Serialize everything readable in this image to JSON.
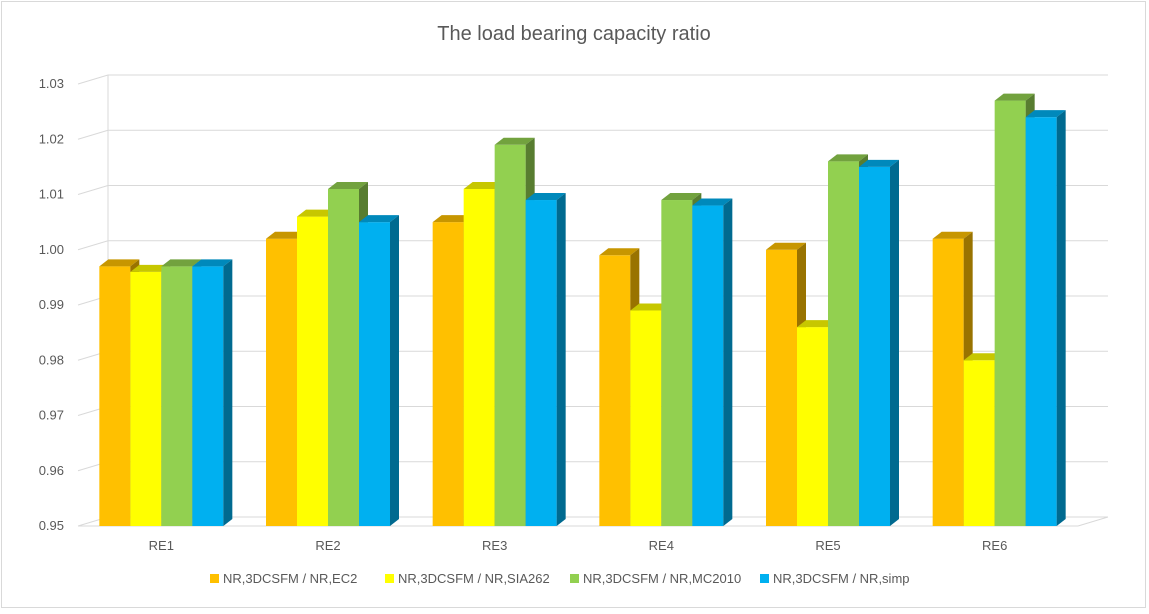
{
  "chart_data": {
    "type": "bar",
    "title": "The load bearing capacity ratio",
    "categories": [
      "RE1",
      "RE2",
      "RE3",
      "RE4",
      "RE5",
      "RE6"
    ],
    "series": [
      {
        "name": "NR,3DCSFM / NR,EC2",
        "color": "#FFC000",
        "values": [
          0.997,
          1.002,
          1.005,
          0.999,
          1.0,
          1.002
        ]
      },
      {
        "name": "NR,3DCSFM / NR,SIA262",
        "color": "#FFFF00",
        "values": [
          0.996,
          1.006,
          1.011,
          0.989,
          0.986,
          0.98
        ]
      },
      {
        "name": "NR,3DCSFM / NR,MC2010",
        "color": "#92D050",
        "values": [
          0.997,
          1.011,
          1.019,
          1.009,
          1.016,
          1.027
        ]
      },
      {
        "name": "NR,3DCSFM / NR,simp",
        "color": "#00B0F0",
        "values": [
          0.997,
          1.005,
          1.009,
          1.008,
          1.015,
          1.024
        ]
      }
    ],
    "ylim": [
      0.95,
      1.03
    ],
    "yticks": [
      "0.95",
      "0.96",
      "0.97",
      "0.98",
      "0.99",
      "1.00",
      "1.01",
      "1.02",
      "1.03"
    ],
    "grid": true,
    "legend_position": "bottom",
    "style": "3d-clustered-column"
  }
}
